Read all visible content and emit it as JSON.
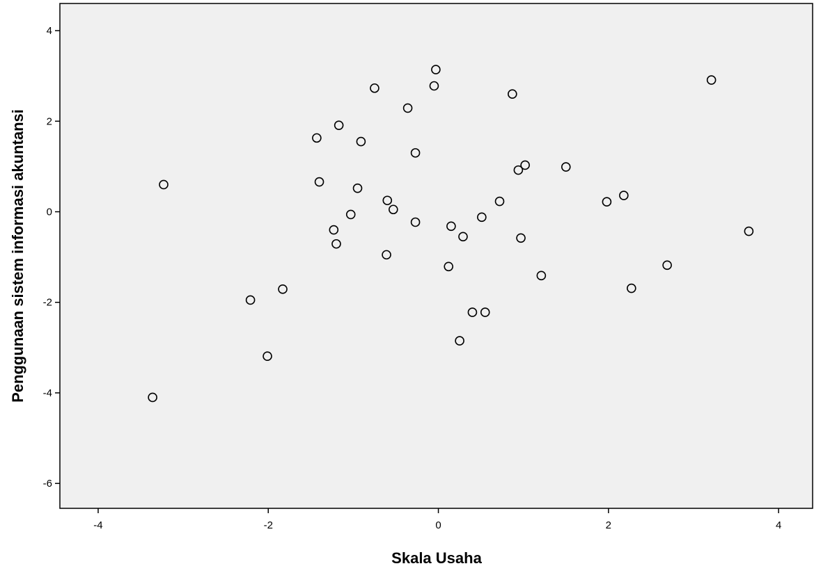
{
  "chart_data": {
    "type": "scatter",
    "title": "",
    "xlabel": "Skala Usaha",
    "ylabel": "Penggunaan sistem informasi akuntansi",
    "xlim": [
      -4.45,
      4.4
    ],
    "ylim": [
      -6.55,
      4.6
    ],
    "x_ticks": [
      -4,
      -2,
      0,
      2,
      4
    ],
    "y_ticks": [
      4,
      2,
      0,
      -2,
      -4,
      -6
    ],
    "x_tick_labels": [
      "-4",
      "-2",
      "0",
      "2",
      "4"
    ],
    "y_tick_labels": [
      "4",
      "2",
      "0",
      "-2",
      "-4",
      "-6"
    ],
    "grid": false,
    "colors": {
      "plot_background": "#f0f0f0",
      "marker_stroke": "#000000",
      "marker_fill": "none",
      "frame": "#000000"
    },
    "points": [
      {
        "x": -3.23,
        "y": 0.6
      },
      {
        "x": -3.36,
        "y": -4.1
      },
      {
        "x": -2.21,
        "y": -1.95
      },
      {
        "x": -2.01,
        "y": -3.19
      },
      {
        "x": -1.83,
        "y": -1.71
      },
      {
        "x": -1.43,
        "y": 1.63
      },
      {
        "x": -1.4,
        "y": 0.66
      },
      {
        "x": -1.23,
        "y": -0.4
      },
      {
        "x": -1.2,
        "y": -0.71
      },
      {
        "x": -1.17,
        "y": 1.91
      },
      {
        "x": -1.03,
        "y": -0.06
      },
      {
        "x": -0.95,
        "y": 0.52
      },
      {
        "x": -0.91,
        "y": 1.55
      },
      {
        "x": -0.75,
        "y": 2.73
      },
      {
        "x": -0.6,
        "y": 0.25
      },
      {
        "x": -0.61,
        "y": -0.95
      },
      {
        "x": -0.53,
        "y": 0.05
      },
      {
        "x": -0.36,
        "y": 2.29
      },
      {
        "x": -0.27,
        "y": 1.3
      },
      {
        "x": -0.27,
        "y": -0.23
      },
      {
        "x": -0.05,
        "y": 2.78
      },
      {
        "x": -0.03,
        "y": 3.14
      },
      {
        "x": 0.12,
        "y": -1.21
      },
      {
        "x": 0.15,
        "y": -0.32
      },
      {
        "x": 0.25,
        "y": -2.85
      },
      {
        "x": 0.29,
        "y": -0.55
      },
      {
        "x": 0.4,
        "y": -2.22
      },
      {
        "x": 0.51,
        "y": -0.12
      },
      {
        "x": 0.55,
        "y": -2.22
      },
      {
        "x": 0.72,
        "y": 0.23
      },
      {
        "x": 0.87,
        "y": 2.6
      },
      {
        "x": 0.94,
        "y": 0.92
      },
      {
        "x": 0.97,
        "y": -0.58
      },
      {
        "x": 1.02,
        "y": 1.03
      },
      {
        "x": 1.21,
        "y": -1.41
      },
      {
        "x": 1.5,
        "y": 0.99
      },
      {
        "x": 1.98,
        "y": 0.22
      },
      {
        "x": 2.18,
        "y": 0.36
      },
      {
        "x": 2.27,
        "y": -1.69
      },
      {
        "x": 2.69,
        "y": -1.18
      },
      {
        "x": 3.21,
        "y": 2.91
      },
      {
        "x": 3.65,
        "y": -0.43
      }
    ]
  }
}
